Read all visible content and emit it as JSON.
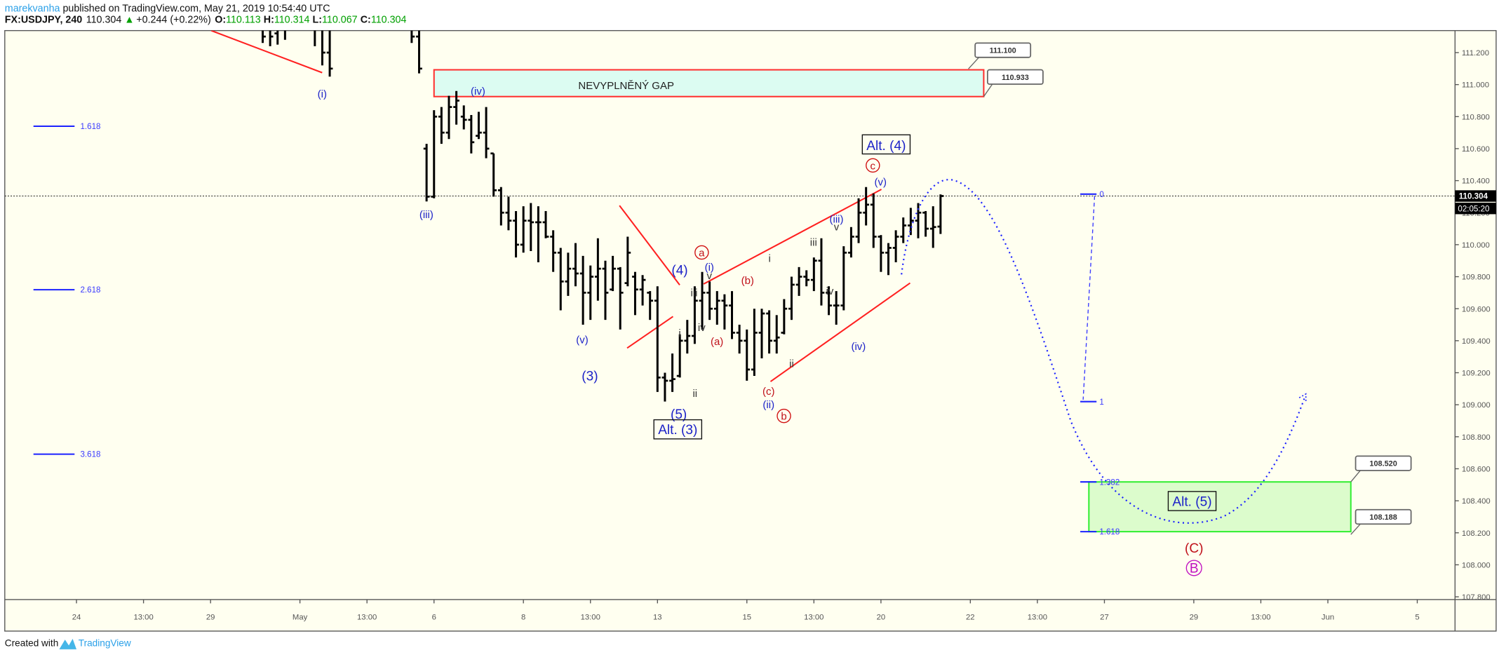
{
  "header": {
    "author": "marekvanha",
    "published": " published on TradingView.com, May 21, 2019 10:54:40 UTC",
    "symbol": "FX:USDJPY, 240",
    "last": "110.304",
    "change": "+0.244 (+0.22%)",
    "o_label": "O:",
    "o": "110.113",
    "h_label": "H:",
    "h": "110.314",
    "l_label": "L:",
    "l": "110.067",
    "c_label": "C:",
    "c": "110.304"
  },
  "footer": {
    "created": "Created with",
    "brand": "TradingView"
  },
  "price_axis": {
    "current_price": "110.304",
    "countdown": "02:05:20"
  },
  "colors": {
    "background": "#fffff0",
    "bars": "#000000",
    "trendlines": "#ff2020",
    "wave_labels": "#1c22c8",
    "gap_fill": "#dcfcf2",
    "target_fill": "#dcfccc",
    "target_border": "#33ee33",
    "up": "#00a000"
  },
  "annotations": {
    "gap": "NEVYPLNĚNÝ GAP",
    "w_i_top": "(i)",
    "w_iv_top": "(iv)",
    "w_iii_top": "(iii)",
    "w_v_low": "(v)",
    "w_3": "(3)",
    "w_4": "(4)",
    "w_5": "(5)",
    "alt3": "Alt. (3)",
    "alt4": "Alt. (4)",
    "alt5": "Alt. (5)",
    "s_i1": "i",
    "s_ii1": "ii",
    "s_iii1": "iii",
    "s_iv1": "iv",
    "s_v1": "v",
    "w_i2": "(i)",
    "circ_a": "a",
    "r_a": "(a)",
    "r_b": "(b)",
    "r_c": "(c)",
    "w_ii2": "(ii)",
    "circ_b": "b",
    "s_i2": "i",
    "s_ii2": "ii",
    "s_iii2": "iii",
    "s_v2": "v",
    "w_iii2": "(iii)",
    "s_iv2": "iv",
    "w_iv2": "(iv)",
    "w_v2": "(v)",
    "circ_c": "c",
    "big_C": "(C)",
    "circ_B": "B",
    "fib_left": [
      "1.618",
      "2.618",
      "3.618"
    ],
    "fib_right": [
      "0",
      "1",
      "1.382",
      "1.618"
    ],
    "callouts": [
      "111.100",
      "110.933",
      "108.520",
      "108.188"
    ]
  },
  "chart_data": {
    "type": "ohlc",
    "symbol": "FX:USDJPY",
    "interval": "240",
    "ylim": [
      107.7,
      111.35
    ],
    "yticks": [
      "111.200",
      "111.000",
      "110.800",
      "110.600",
      "110.400",
      "110.200",
      "110.000",
      "109.800",
      "109.600",
      "109.400",
      "109.200",
      "109.000",
      "108.800",
      "108.600",
      "108.400",
      "108.200",
      "108.000",
      "107.800"
    ],
    "xticks": [
      {
        "label": "24",
        "t": "2019-04-24 00:00"
      },
      {
        "label": "13:00",
        "t": "2019-04-25 12:00"
      },
      {
        "label": "29",
        "t": "2019-04-29 00:00"
      },
      {
        "label": "May",
        "t": "2019-05-01 00:00"
      },
      {
        "label": "13:00",
        "t": "2019-05-02 12:00"
      },
      {
        "label": "6",
        "t": "2019-05-06 00:00"
      },
      {
        "label": "8",
        "t": "2019-05-08 00:00"
      },
      {
        "label": "13:00",
        "t": "2019-05-09 12:00"
      },
      {
        "label": "13",
        "t": "2019-05-13 00:00"
      },
      {
        "label": "15",
        "t": "2019-05-15 00:00"
      },
      {
        "label": "13:00",
        "t": "2019-05-16 12:00"
      },
      {
        "label": "20",
        "t": "2019-05-20 00:00"
      },
      {
        "label": "22",
        "t": "2019-05-22 00:00"
      },
      {
        "label": "13:00",
        "t": "2019-05-23 12:00"
      },
      {
        "label": "27",
        "t": "2019-05-27 00:00"
      },
      {
        "label": "29",
        "t": "2019-05-29 00:00"
      },
      {
        "label": "13:00",
        "t": "2019-05-30 12:00"
      },
      {
        "label": "Jun",
        "t": "2019-06-03 00:00"
      },
      {
        "label": "5",
        "t": "2019-06-05 00:00"
      }
    ],
    "current_price": 110.304,
    "gap_zone": [
      110.933,
      111.1
    ],
    "target_zone": [
      108.188,
      108.52
    ],
    "segments": [
      {
        "start": "2019-04-30 04:00",
        "ohlc": [
          [
            111.4,
            111.45,
            111.26,
            111.3
          ],
          [
            111.35,
            111.45,
            111.24,
            111.3
          ],
          [
            111.32,
            111.45,
            111.25,
            111.38
          ],
          [
            111.38,
            111.45,
            111.28,
            111.4
          ]
        ]
      },
      {
        "start": "2019-05-01 08:00",
        "ohlc": [
          [
            111.4,
            111.45,
            111.24,
            111.35
          ],
          [
            111.35,
            111.45,
            111.12,
            111.2
          ],
          [
            111.2,
            111.45,
            111.05,
            111.1
          ]
        ]
      },
      {
        "start": "2019-05-03 12:00",
        "ohlc": [
          [
            111.4,
            111.45,
            111.26,
            111.3
          ],
          [
            111.3,
            111.38,
            111.07,
            111.1
          ]
        ]
      },
      {
        "start": "2019-05-03 20:00",
        "ohlc": [
          [
            110.6,
            110.63,
            110.27,
            110.3
          ],
          [
            110.3,
            110.84,
            110.29,
            110.8
          ],
          [
            110.8,
            110.86,
            110.63,
            110.7
          ],
          [
            110.7,
            110.93,
            110.66,
            110.86
          ],
          [
            110.86,
            110.96,
            110.75,
            110.9
          ],
          [
            110.8,
            110.87,
            110.72,
            110.78
          ],
          [
            110.78,
            110.81,
            110.57,
            110.64
          ],
          [
            110.68,
            110.83,
            110.66,
            110.7
          ],
          [
            110.7,
            110.86,
            110.54,
            110.6
          ],
          [
            110.57,
            110.57,
            110.3,
            110.34
          ],
          [
            110.34,
            110.36,
            110.12,
            110.2
          ],
          [
            110.2,
            110.3,
            110.09,
            110.15
          ],
          [
            110.15,
            110.21,
            109.92,
            110.0
          ],
          [
            110.0,
            110.24,
            109.95,
            110.15
          ],
          [
            110.15,
            110.26,
            109.96,
            110.14
          ],
          [
            110.14,
            110.24,
            109.89,
            110.14
          ],
          [
            110.14,
            110.21,
            110.04,
            110.05
          ],
          [
            110.05,
            110.09,
            109.83,
            109.95
          ],
          [
            109.95,
            109.98,
            109.59,
            109.77
          ],
          [
            109.77,
            109.95,
            109.68,
            109.85
          ],
          [
            109.85,
            110.01,
            109.74,
            109.82
          ],
          [
            109.82,
            109.93,
            109.5,
            109.7
          ],
          [
            109.7,
            109.87,
            109.53,
            109.8
          ],
          [
            109.8,
            110.04,
            109.65,
            109.85
          ],
          [
            109.85,
            109.9,
            109.53,
            109.7
          ],
          [
            109.72,
            109.93,
            109.71,
            109.85
          ],
          [
            109.85,
            109.86,
            109.47,
            109.7
          ],
          [
            109.76,
            110.05,
            109.74,
            109.95
          ],
          [
            109.8,
            109.83,
            109.56,
            109.72
          ],
          [
            109.72,
            109.81,
            109.62,
            109.78
          ],
          [
            109.7,
            109.71,
            109.53,
            109.65
          ],
          [
            109.65,
            109.74,
            109.08,
            109.17
          ],
          [
            109.17,
            109.2,
            109.02,
            109.15
          ],
          [
            109.15,
            109.32,
            109.08,
            109.16
          ],
          [
            109.18,
            109.44,
            109.17,
            109.4
          ],
          [
            109.4,
            109.53,
            109.32,
            109.43
          ],
          [
            109.43,
            109.74,
            109.38,
            109.65
          ],
          [
            109.65,
            109.83,
            109.47,
            109.7
          ],
          [
            109.7,
            109.77,
            109.53,
            109.6
          ],
          [
            109.6,
            109.71,
            109.5,
            109.65
          ],
          [
            109.65,
            109.69,
            109.47,
            109.62
          ],
          [
            109.62,
            109.71,
            109.41,
            109.45
          ],
          [
            109.45,
            109.5,
            109.32,
            109.4
          ],
          [
            109.4,
            109.47,
            109.15,
            109.22
          ],
          [
            109.22,
            109.6,
            109.18,
            109.45
          ],
          [
            109.45,
            109.6,
            109.29,
            109.57
          ],
          [
            109.57,
            109.59,
            109.32,
            109.4
          ],
          [
            109.4,
            109.56,
            109.32,
            109.42
          ],
          [
            109.45,
            109.66,
            109.44,
            109.6
          ],
          [
            109.6,
            109.8,
            109.53,
            109.75
          ],
          [
            109.75,
            109.86,
            109.68,
            109.8
          ],
          [
            109.8,
            109.84,
            109.74,
            109.78
          ],
          [
            109.78,
            109.92,
            109.71,
            109.9
          ],
          [
            109.9,
            110.04,
            109.62,
            109.7
          ],
          [
            109.7,
            109.74,
            109.56,
            109.62
          ],
          [
            109.62,
            109.71,
            109.5,
            109.62
          ],
          [
            109.62,
            109.99,
            109.59,
            109.95
          ],
          [
            109.95,
            110.11,
            109.92,
            110.05
          ],
          [
            110.05,
            110.29,
            110.01,
            110.2
          ],
          [
            110.2,
            110.36,
            110.12,
            110.25
          ],
          [
            110.25,
            110.32,
            109.98,
            110.05
          ],
          [
            110.05,
            110.06,
            109.83,
            109.95
          ],
          [
            109.95,
            110.01,
            109.81,
            109.98
          ],
          [
            109.98,
            110.09,
            109.89,
            110.05
          ],
          [
            110.05,
            110.17,
            110.01,
            110.12
          ],
          [
            110.12,
            110.23,
            110.06,
            110.15
          ],
          [
            110.15,
            110.26,
            110.04,
            110.2
          ],
          [
            110.2,
            110.21,
            110.05,
            110.1
          ],
          [
            110.1,
            110.24,
            109.98,
            110.11
          ],
          [
            110.113,
            110.314,
            110.067,
            110.304
          ]
        ]
      }
    ]
  }
}
